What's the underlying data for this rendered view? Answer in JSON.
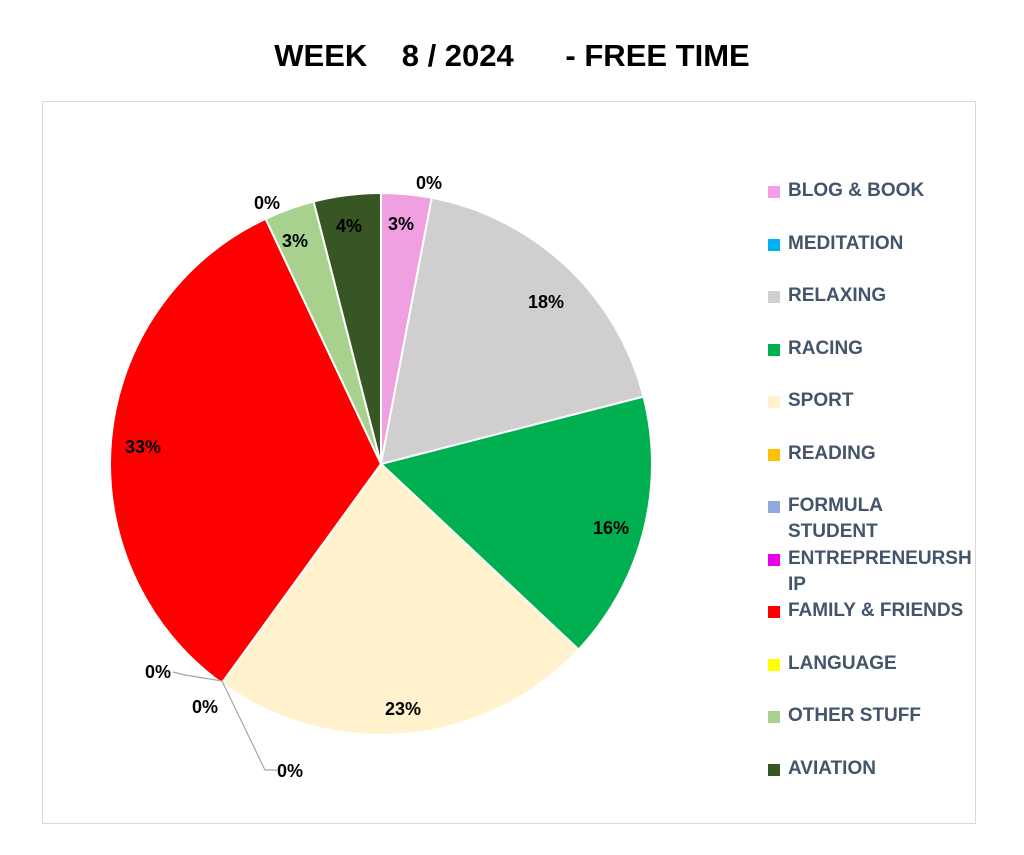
{
  "chart_data": {
    "type": "pie",
    "title": "WEEK    8 / 2024      - FREE TIME",
    "categories": [
      "BLOG & BOOK",
      "MEDITATION",
      "RELAXING",
      "RACING",
      "SPORT",
      "READING",
      "FORMULA STUDENT",
      "ENTREPRENEURSHIP",
      "FAMILY & FRIENDS",
      "LANGUAGE",
      "OTHER STUFF",
      "AVIATION"
    ],
    "values": [
      3,
      0,
      18,
      16,
      23,
      0,
      0,
      0,
      33,
      0,
      3,
      4
    ],
    "data_labels": [
      "3%",
      "0%",
      "18%",
      "16%",
      "23%",
      "0%",
      "0%",
      "0%",
      "33%",
      "0%",
      "3%",
      "4%"
    ],
    "colors": [
      "#f0a0e0",
      "#00b0f0",
      "#d0cece",
      "#00b050",
      "#fff2cc",
      "#ffc000",
      "#8eaadb",
      "#e600e6",
      "#ff0000",
      "#ffff00",
      "#a9d18e",
      "#375623"
    ],
    "legend": {
      "position": "right",
      "entries": [
        {
          "lines": [
            "BLOG & BOOK"
          ]
        },
        {
          "lines": [
            "MEDITATION"
          ]
        },
        {
          "lines": [
            "RELAXING"
          ]
        },
        {
          "lines": [
            "RACING"
          ]
        },
        {
          "lines": [
            "SPORT"
          ]
        },
        {
          "lines": [
            "READING"
          ]
        },
        {
          "lines": [
            "FORMULA",
            "STUDENT"
          ]
        },
        {
          "lines": [
            "ENTREPRENEURSH",
            "IP"
          ]
        },
        {
          "lines": [
            "FAMILY & FRIENDS"
          ]
        },
        {
          "lines": [
            "LANGUAGE"
          ]
        },
        {
          "lines": [
            "OTHER STUFF"
          ]
        },
        {
          "lines": [
            "AVIATION"
          ]
        }
      ]
    }
  }
}
